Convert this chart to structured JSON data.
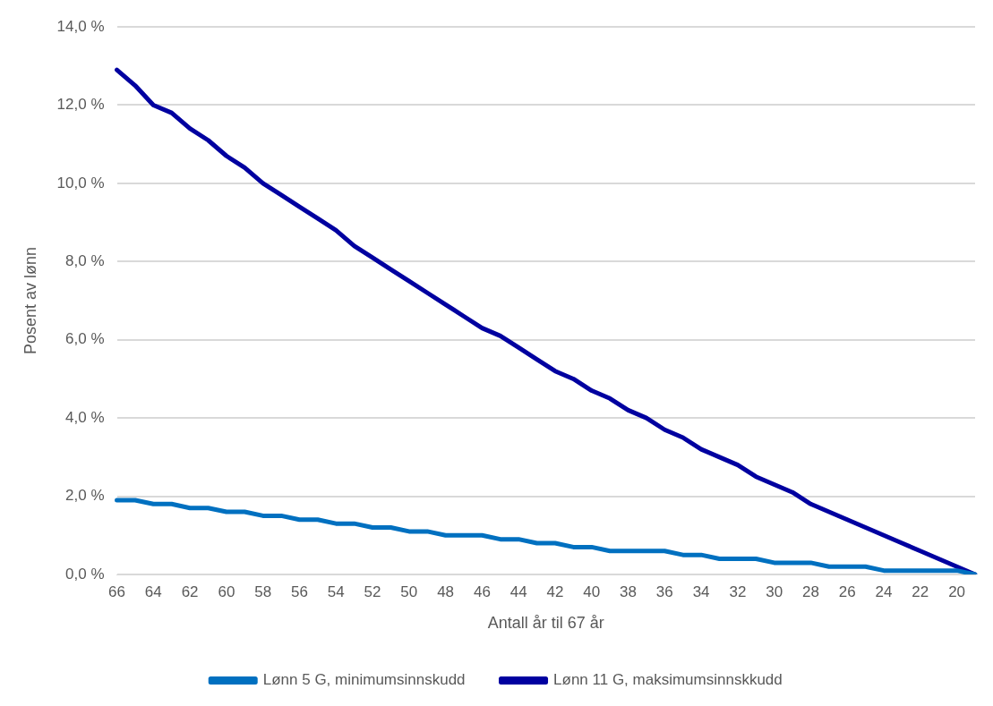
{
  "chart_data": {
    "type": "line",
    "xlabel": "Antall år til 67 år",
    "ylabel": "Posent av lønn",
    "categories": [
      "66",
      null,
      "64",
      null,
      "62",
      null,
      "60",
      null,
      "58",
      null,
      "56",
      null,
      "54",
      null,
      "52",
      null,
      "50",
      null,
      "48",
      null,
      "46",
      null,
      "44",
      null,
      "42",
      null,
      "40",
      null,
      "38",
      null,
      "36",
      null,
      "34",
      null,
      "32",
      null,
      "30",
      null,
      "28",
      null,
      "26",
      null,
      "24",
      null,
      "22",
      null,
      "20",
      null
    ],
    "series": [
      {
        "name": "Lønn 5 G, minimumsinnskudd",
        "color": "#0070c0",
        "values": [
          1.9,
          1.9,
          1.8,
          1.8,
          1.7,
          1.7,
          1.6,
          1.6,
          1.5,
          1.5,
          1.4,
          1.4,
          1.3,
          1.3,
          1.2,
          1.2,
          1.1,
          1.1,
          1.0,
          1.0,
          1.0,
          0.9,
          0.9,
          0.8,
          0.8,
          0.7,
          0.7,
          0.6,
          0.6,
          0.6,
          0.6,
          0.5,
          0.5,
          0.4,
          0.4,
          0.4,
          0.3,
          0.3,
          0.3,
          0.2,
          0.2,
          0.2,
          0.1,
          0.1,
          0.1,
          0.1,
          0.1,
          0.0
        ]
      },
      {
        "name": "Lønn 11 G, maksimumsinnskkudd",
        "color": "#0000a0",
        "values": [
          12.9,
          12.5,
          12.0,
          11.8,
          11.4,
          11.1,
          10.7,
          10.4,
          10.0,
          9.7,
          9.4,
          9.1,
          8.8,
          8.4,
          8.1,
          7.8,
          7.5,
          7.2,
          6.9,
          6.6,
          6.3,
          6.1,
          5.8,
          5.5,
          5.2,
          5.0,
          4.7,
          4.5,
          4.2,
          4.0,
          3.7,
          3.5,
          3.2,
          3.0,
          2.8,
          2.5,
          2.3,
          2.1,
          1.8,
          1.6,
          1.4,
          1.2,
          1.0,
          0.8,
          0.6,
          0.4,
          0.2,
          0.0
        ]
      }
    ],
    "ylim": [
      0,
      14
    ],
    "yticks": [
      {
        "value": 0,
        "label": "0,0 %"
      },
      {
        "value": 2,
        "label": "2,0 %"
      },
      {
        "value": 4,
        "label": "4,0 %"
      },
      {
        "value": 6,
        "label": "6,0 %"
      },
      {
        "value": 8,
        "label": "8,0 %"
      },
      {
        "value": 10,
        "label": "10,0 %"
      },
      {
        "value": 12,
        "label": "12,0 %"
      },
      {
        "value": 14,
        "label": "14,0 %"
      }
    ],
    "grid": "y",
    "legend": "bottom",
    "marker": "none",
    "line_style": "solid"
  }
}
